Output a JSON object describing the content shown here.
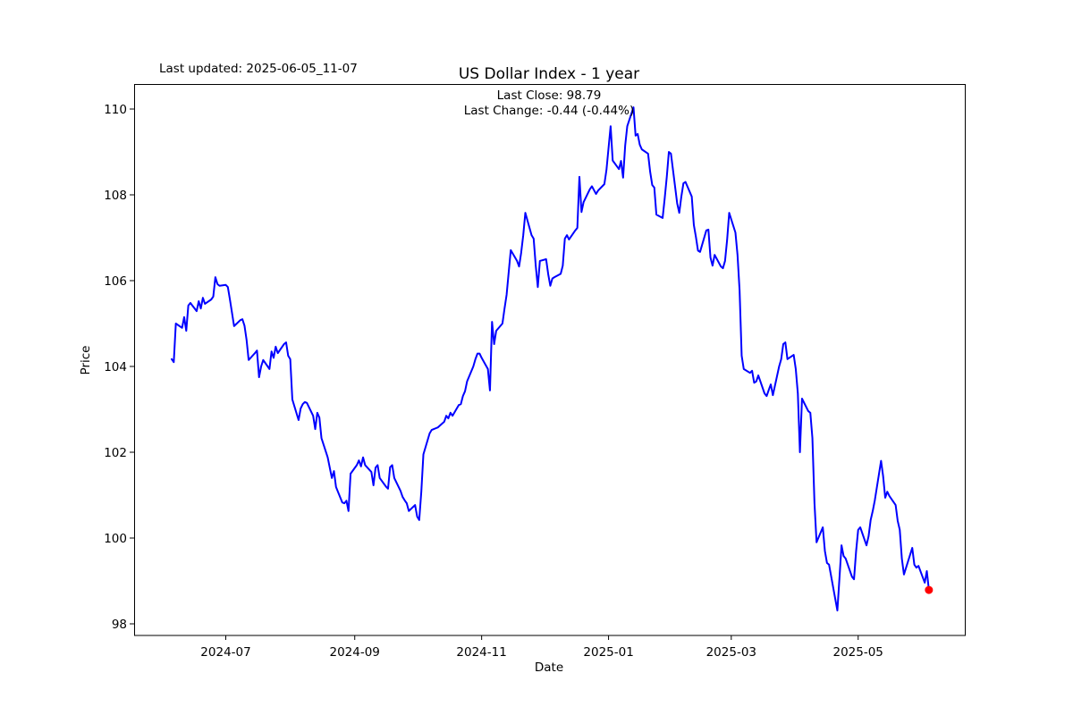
{
  "header": {
    "last_updated": "Last updated: 2025-06-05_11-07"
  },
  "chart_data": {
    "type": "line",
    "title": "US Dollar Index - 1 year",
    "annotations": [
      "Last Close: 98.79",
      "Last Change: -0.44 (-0.44%)"
    ],
    "last_close": 98.79,
    "last_change": "-0.44 (-0.44%)",
    "xlabel": "Date",
    "ylabel": "Price",
    "x_ticks": [
      "2024-07",
      "2024-09",
      "2024-11",
      "2025-01",
      "2025-03",
      "2025-05"
    ],
    "y_ticks": [
      98,
      100,
      102,
      104,
      106,
      108,
      110
    ],
    "ylim": [
      97.73,
      110.58
    ],
    "xlim": [
      "2024-05-18",
      "2025-06-21"
    ],
    "grid": false,
    "legend": null,
    "line_color": "#0000ff",
    "marker_color": "#ff0000",
    "frame_color": "#000000",
    "background_color": "#ffffff",
    "series": [
      {
        "name": "US Dollar Index",
        "points": [
          [
            "2024-06-05",
            104.17
          ],
          [
            "2024-06-06",
            104.1
          ],
          [
            "2024-06-07",
            105.0
          ],
          [
            "2024-06-10",
            104.9
          ],
          [
            "2024-06-11",
            105.15
          ],
          [
            "2024-06-12",
            104.83
          ],
          [
            "2024-06-13",
            105.42
          ],
          [
            "2024-06-14",
            105.48
          ],
          [
            "2024-06-17",
            105.29
          ],
          [
            "2024-06-18",
            105.52
          ],
          [
            "2024-06-19",
            105.35
          ],
          [
            "2024-06-20",
            105.6
          ],
          [
            "2024-06-21",
            105.46
          ],
          [
            "2024-06-24",
            105.56
          ],
          [
            "2024-06-25",
            105.63
          ],
          [
            "2024-06-26",
            106.08
          ],
          [
            "2024-06-27",
            105.92
          ],
          [
            "2024-06-28",
            105.88
          ],
          [
            "2024-07-01",
            105.9
          ],
          [
            "2024-07-02",
            105.85
          ],
          [
            "2024-07-03",
            105.56
          ],
          [
            "2024-07-05",
            104.94
          ],
          [
            "2024-07-08",
            105.08
          ],
          [
            "2024-07-09",
            105.1
          ],
          [
            "2024-07-10",
            104.95
          ],
          [
            "2024-07-11",
            104.62
          ],
          [
            "2024-07-12",
            104.15
          ],
          [
            "2024-07-15",
            104.31
          ],
          [
            "2024-07-16",
            104.37
          ],
          [
            "2024-07-17",
            103.75
          ],
          [
            "2024-07-18",
            104.0
          ],
          [
            "2024-07-19",
            104.15
          ],
          [
            "2024-07-22",
            103.94
          ],
          [
            "2024-07-23",
            104.35
          ],
          [
            "2024-07-24",
            104.2
          ],
          [
            "2024-07-25",
            104.46
          ],
          [
            "2024-07-26",
            104.31
          ],
          [
            "2024-07-29",
            104.52
          ],
          [
            "2024-07-30",
            104.56
          ],
          [
            "2024-07-31",
            104.25
          ],
          [
            "2024-08-01",
            104.17
          ],
          [
            "2024-08-02",
            103.23
          ],
          [
            "2024-08-05",
            102.75
          ],
          [
            "2024-08-06",
            103.02
          ],
          [
            "2024-08-07",
            103.12
          ],
          [
            "2024-08-08",
            103.17
          ],
          [
            "2024-08-09",
            103.15
          ],
          [
            "2024-08-12",
            102.85
          ],
          [
            "2024-08-13",
            102.54
          ],
          [
            "2024-08-14",
            102.92
          ],
          [
            "2024-08-15",
            102.81
          ],
          [
            "2024-08-16",
            102.33
          ],
          [
            "2024-08-19",
            101.88
          ],
          [
            "2024-08-20",
            101.64
          ],
          [
            "2024-08-21",
            101.4
          ],
          [
            "2024-08-22",
            101.56
          ],
          [
            "2024-08-23",
            101.19
          ],
          [
            "2024-08-26",
            100.83
          ],
          [
            "2024-08-27",
            100.81
          ],
          [
            "2024-08-28",
            100.87
          ],
          [
            "2024-08-29",
            100.63
          ],
          [
            "2024-08-30",
            101.5
          ],
          [
            "2024-09-02",
            101.7
          ],
          [
            "2024-09-03",
            101.81
          ],
          [
            "2024-09-04",
            101.67
          ],
          [
            "2024-09-05",
            101.88
          ],
          [
            "2024-09-06",
            101.7
          ],
          [
            "2024-09-09",
            101.54
          ],
          [
            "2024-09-10",
            101.23
          ],
          [
            "2024-09-11",
            101.64
          ],
          [
            "2024-09-12",
            101.7
          ],
          [
            "2024-09-13",
            101.4
          ],
          [
            "2024-09-16",
            101.2
          ],
          [
            "2024-09-17",
            101.15
          ],
          [
            "2024-09-18",
            101.65
          ],
          [
            "2024-09-19",
            101.7
          ],
          [
            "2024-09-20",
            101.4
          ],
          [
            "2024-09-23",
            101.1
          ],
          [
            "2024-09-24",
            100.96
          ],
          [
            "2024-09-25",
            100.88
          ],
          [
            "2024-09-26",
            100.81
          ],
          [
            "2024-09-27",
            100.63
          ],
          [
            "2024-09-30",
            100.77
          ],
          [
            "2024-10-01",
            100.5
          ],
          [
            "2024-10-02",
            100.42
          ],
          [
            "2024-10-03",
            101.08
          ],
          [
            "2024-10-04",
            101.95
          ],
          [
            "2024-10-07",
            102.44
          ],
          [
            "2024-10-08",
            102.52
          ],
          [
            "2024-10-09",
            102.54
          ],
          [
            "2024-10-10",
            102.56
          ],
          [
            "2024-10-11",
            102.58
          ],
          [
            "2024-10-14",
            102.71
          ],
          [
            "2024-10-15",
            102.85
          ],
          [
            "2024-10-16",
            102.79
          ],
          [
            "2024-10-17",
            102.92
          ],
          [
            "2024-10-18",
            102.85
          ],
          [
            "2024-10-21",
            103.1
          ],
          [
            "2024-10-22",
            103.12
          ],
          [
            "2024-10-23",
            103.31
          ],
          [
            "2024-10-24",
            103.42
          ],
          [
            "2024-10-25",
            103.65
          ],
          [
            "2024-10-28",
            104.0
          ],
          [
            "2024-10-29",
            104.17
          ],
          [
            "2024-10-30",
            104.3
          ],
          [
            "2024-10-31",
            104.3
          ],
          [
            "2024-11-01",
            104.2
          ],
          [
            "2024-11-04",
            103.94
          ],
          [
            "2024-11-05",
            103.44
          ],
          [
            "2024-11-06",
            105.04
          ],
          [
            "2024-11-07",
            104.52
          ],
          [
            "2024-11-08",
            104.83
          ],
          [
            "2024-11-11",
            105.0
          ],
          [
            "2024-11-12",
            105.35
          ],
          [
            "2024-11-13",
            105.67
          ],
          [
            "2024-11-14",
            106.19
          ],
          [
            "2024-11-15",
            106.71
          ],
          [
            "2024-11-18",
            106.46
          ],
          [
            "2024-11-19",
            106.33
          ],
          [
            "2024-11-20",
            106.65
          ],
          [
            "2024-11-21",
            107.06
          ],
          [
            "2024-11-22",
            107.58
          ],
          [
            "2024-11-25",
            107.06
          ],
          [
            "2024-11-26",
            106.98
          ],
          [
            "2024-11-27",
            106.35
          ],
          [
            "2024-11-28",
            105.85
          ],
          [
            "2024-11-29",
            106.46
          ],
          [
            "2024-12-02",
            106.5
          ],
          [
            "2024-12-03",
            106.15
          ],
          [
            "2024-12-04",
            105.88
          ],
          [
            "2024-12-05",
            106.05
          ],
          [
            "2024-12-06",
            106.08
          ],
          [
            "2024-12-09",
            106.16
          ],
          [
            "2024-12-10",
            106.35
          ],
          [
            "2024-12-11",
            106.98
          ],
          [
            "2024-12-12",
            107.06
          ],
          [
            "2024-12-13",
            106.96
          ],
          [
            "2024-12-16",
            107.17
          ],
          [
            "2024-12-17",
            107.23
          ],
          [
            "2024-12-18",
            108.42
          ],
          [
            "2024-12-19",
            107.6
          ],
          [
            "2024-12-20",
            107.83
          ],
          [
            "2024-12-23",
            108.13
          ],
          [
            "2024-12-24",
            108.2
          ],
          [
            "2024-12-26",
            108.02
          ],
          [
            "2024-12-27",
            108.1
          ],
          [
            "2024-12-30",
            108.25
          ],
          [
            "2024-12-31",
            108.58
          ],
          [
            "2025-01-02",
            109.6
          ],
          [
            "2025-01-03",
            108.8
          ],
          [
            "2025-01-06",
            108.6
          ],
          [
            "2025-01-07",
            108.79
          ],
          [
            "2025-01-08",
            108.4
          ],
          [
            "2025-01-09",
            109.15
          ],
          [
            "2025-01-10",
            109.6
          ],
          [
            "2025-01-13",
            110.04
          ],
          [
            "2025-01-14",
            109.38
          ],
          [
            "2025-01-15",
            109.42
          ],
          [
            "2025-01-16",
            109.17
          ],
          [
            "2025-01-17",
            109.06
          ],
          [
            "2025-01-20",
            108.96
          ],
          [
            "2025-01-21",
            108.54
          ],
          [
            "2025-01-22",
            108.23
          ],
          [
            "2025-01-23",
            108.17
          ],
          [
            "2025-01-24",
            107.54
          ],
          [
            "2025-01-27",
            107.46
          ],
          [
            "2025-01-28",
            107.92
          ],
          [
            "2025-01-29",
            108.42
          ],
          [
            "2025-01-30",
            109.0
          ],
          [
            "2025-01-31",
            108.96
          ],
          [
            "2025-02-03",
            107.8
          ],
          [
            "2025-02-04",
            107.58
          ],
          [
            "2025-02-05",
            107.96
          ],
          [
            "2025-02-06",
            108.27
          ],
          [
            "2025-02-07",
            108.3
          ],
          [
            "2025-02-10",
            107.96
          ],
          [
            "2025-02-11",
            107.3
          ],
          [
            "2025-02-12",
            107.02
          ],
          [
            "2025-02-13",
            106.7
          ],
          [
            "2025-02-14",
            106.67
          ],
          [
            "2025-02-17",
            107.17
          ],
          [
            "2025-02-18",
            107.19
          ],
          [
            "2025-02-19",
            106.54
          ],
          [
            "2025-02-20",
            106.35
          ],
          [
            "2025-02-21",
            106.6
          ],
          [
            "2025-02-24",
            106.33
          ],
          [
            "2025-02-25",
            106.29
          ],
          [
            "2025-02-26",
            106.46
          ],
          [
            "2025-02-27",
            106.95
          ],
          [
            "2025-02-28",
            107.58
          ],
          [
            "2025-03-03",
            107.12
          ],
          [
            "2025-03-04",
            106.6
          ],
          [
            "2025-03-05",
            105.77
          ],
          [
            "2025-03-06",
            104.25
          ],
          [
            "2025-03-07",
            103.94
          ],
          [
            "2025-03-10",
            103.85
          ],
          [
            "2025-03-11",
            103.9
          ],
          [
            "2025-03-12",
            103.62
          ],
          [
            "2025-03-13",
            103.65
          ],
          [
            "2025-03-14",
            103.79
          ],
          [
            "2025-03-17",
            103.37
          ],
          [
            "2025-03-18",
            103.31
          ],
          [
            "2025-03-19",
            103.45
          ],
          [
            "2025-03-20",
            103.58
          ],
          [
            "2025-03-21",
            103.33
          ],
          [
            "2025-03-24",
            104.0
          ],
          [
            "2025-03-25",
            104.17
          ],
          [
            "2025-03-26",
            104.52
          ],
          [
            "2025-03-27",
            104.56
          ],
          [
            "2025-03-28",
            104.17
          ],
          [
            "2025-03-31",
            104.27
          ],
          [
            "2025-04-01",
            103.94
          ],
          [
            "2025-04-02",
            103.37
          ],
          [
            "2025-04-03",
            102.0
          ],
          [
            "2025-04-04",
            103.25
          ],
          [
            "2025-04-07",
            102.96
          ],
          [
            "2025-04-08",
            102.92
          ],
          [
            "2025-04-09",
            102.33
          ],
          [
            "2025-04-10",
            100.81
          ],
          [
            "2025-04-11",
            99.9
          ],
          [
            "2025-04-14",
            100.25
          ],
          [
            "2025-04-15",
            99.7
          ],
          [
            "2025-04-16",
            99.42
          ],
          [
            "2025-04-17",
            99.38
          ],
          [
            "2025-04-21",
            98.31
          ],
          [
            "2025-04-22",
            99.06
          ],
          [
            "2025-04-23",
            99.83
          ],
          [
            "2025-04-24",
            99.58
          ],
          [
            "2025-04-25",
            99.52
          ],
          [
            "2025-04-28",
            99.1
          ],
          [
            "2025-04-29",
            99.04
          ],
          [
            "2025-04-30",
            99.69
          ],
          [
            "2025-05-01",
            100.19
          ],
          [
            "2025-05-02",
            100.25
          ],
          [
            "2025-05-05",
            99.83
          ],
          [
            "2025-05-06",
            100.04
          ],
          [
            "2025-05-07",
            100.42
          ],
          [
            "2025-05-08",
            100.63
          ],
          [
            "2025-05-09",
            100.88
          ],
          [
            "2025-05-12",
            101.8
          ],
          [
            "2025-05-13",
            101.44
          ],
          [
            "2025-05-14",
            100.94
          ],
          [
            "2025-05-15",
            101.08
          ],
          [
            "2025-05-16",
            100.98
          ],
          [
            "2025-05-19",
            100.77
          ],
          [
            "2025-05-20",
            100.4
          ],
          [
            "2025-05-21",
            100.19
          ],
          [
            "2025-05-22",
            99.52
          ],
          [
            "2025-05-23",
            99.15
          ],
          [
            "2025-05-27",
            99.77
          ],
          [
            "2025-05-28",
            99.38
          ],
          [
            "2025-05-29",
            99.31
          ],
          [
            "2025-05-30",
            99.35
          ],
          [
            "2025-06-02",
            98.96
          ],
          [
            "2025-06-03",
            99.23
          ],
          [
            "2025-06-04",
            98.79
          ]
        ]
      }
    ]
  }
}
